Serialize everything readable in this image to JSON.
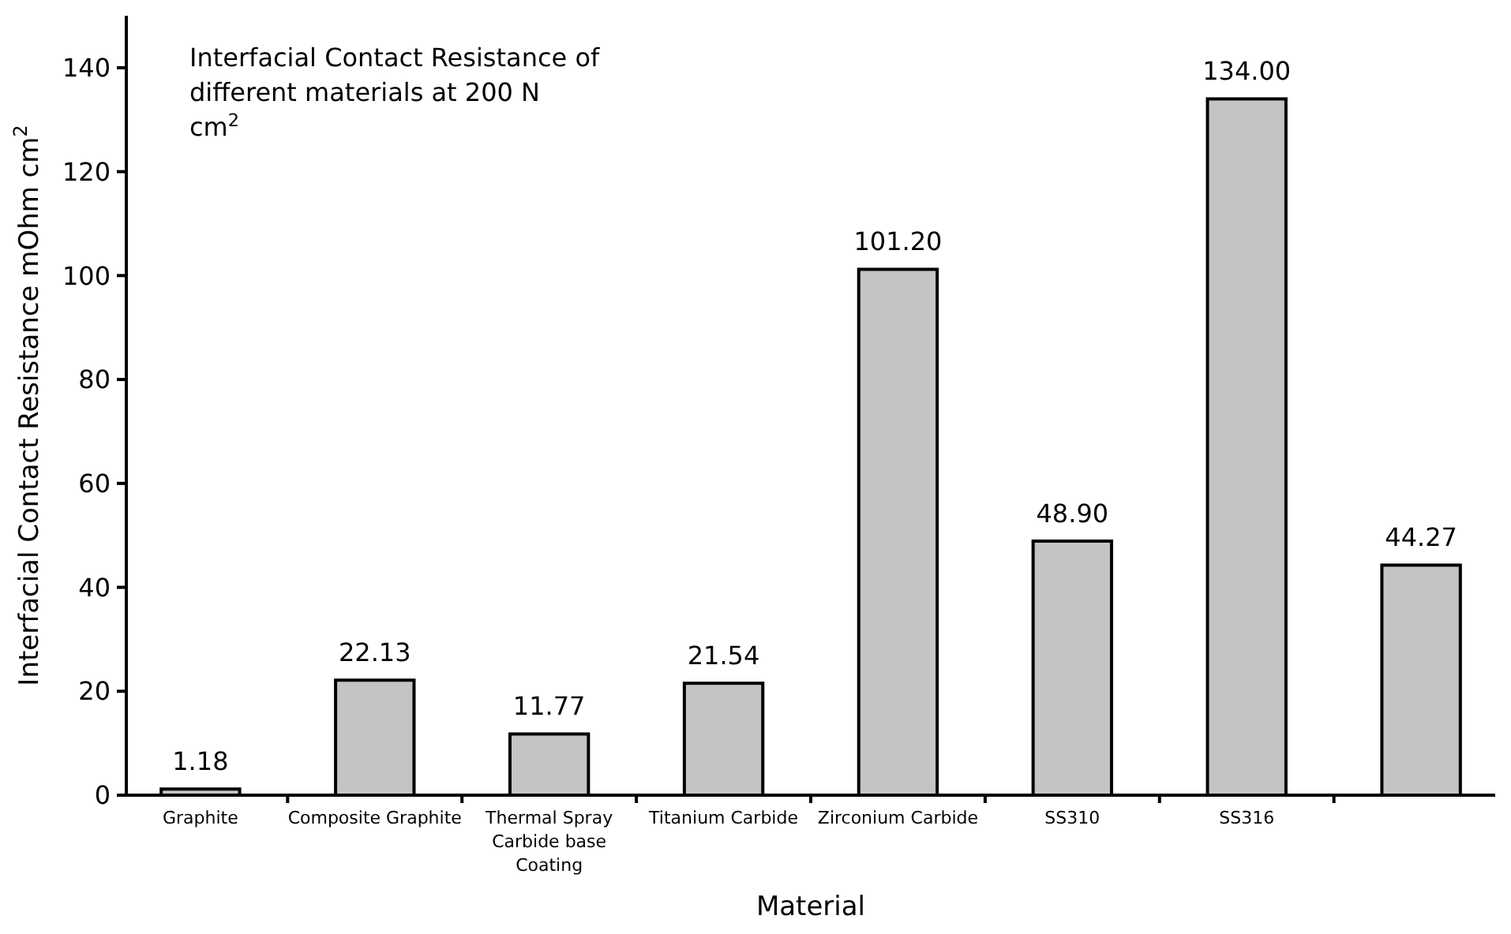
{
  "chart_data": {
    "type": "bar",
    "title": "Interfacial Contact Resistance of different materials at 200 N cm$^{2}$",
    "xlabel": "Material",
    "ylabel": "Interfacial Contact Resistance mOhm cm$^{2}$",
    "categories": [
      "Graphite",
      "Composite Graphite",
      "Thermal Spray Carbide base Coating",
      "Titanium Carbide",
      "Zirconium Carbide",
      "SS310",
      "SS316",
      null
    ],
    "values": [
      1.18,
      22.13,
      11.77,
      21.54,
      101.2,
      48.9,
      134,
      44.27
    ],
    "value_labels": [
      "1.18",
      "22.13",
      "11.77",
      "21.54",
      "101.20",
      "48.90",
      "134.00",
      "44.27"
    ],
    "color": "#c4c4c4",
    "ylim": [
      0,
      150
    ],
    "yticks": [
      0,
      20,
      40,
      60,
      80,
      100,
      120,
      140
    ]
  }
}
